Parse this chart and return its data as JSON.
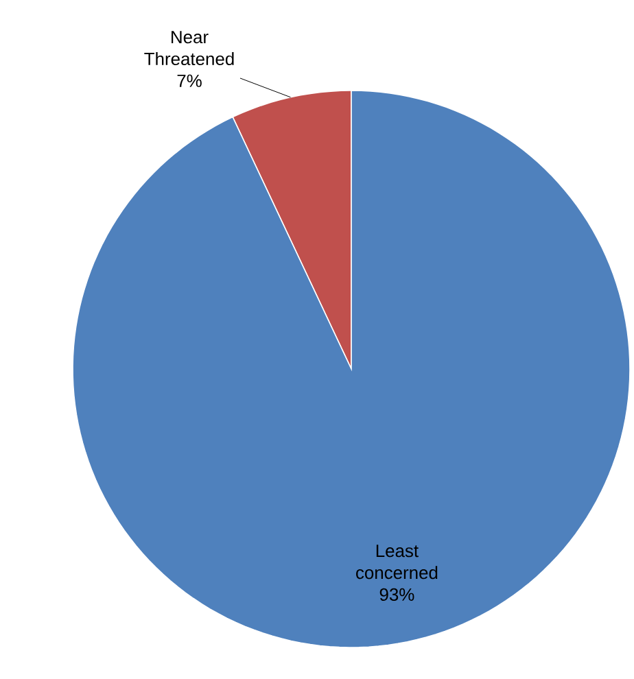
{
  "chart_data": {
    "type": "pie",
    "categories": [
      "Near Threatened",
      "Least concerned"
    ],
    "values": [
      7,
      93
    ],
    "colors": [
      "#c0504d",
      "#4f81bd"
    ],
    "value_labels": [
      "7%",
      "93%"
    ]
  }
}
